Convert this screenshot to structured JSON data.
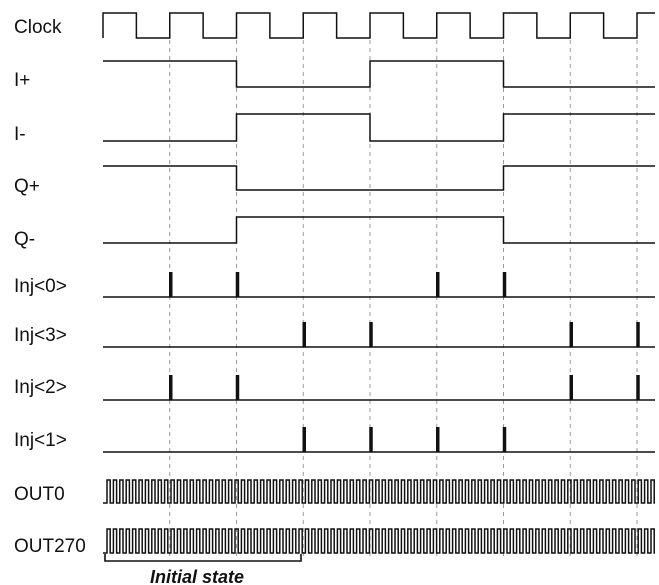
{
  "signals": [
    {
      "label": "Clock",
      "type": "clock"
    },
    {
      "label": "I+",
      "type": "levels",
      "levels": [
        1,
        1,
        0,
        0,
        1,
        1,
        0,
        0,
        0
      ]
    },
    {
      "label": "I-",
      "type": "levels",
      "levels": [
        0,
        0,
        1,
        1,
        0,
        0,
        1,
        1,
        1
      ]
    },
    {
      "label": "Q+",
      "type": "levels",
      "levels": [
        1,
        1,
        0,
        0,
        0,
        0,
        1,
        1,
        1
      ]
    },
    {
      "label": "Q-",
      "type": "levels",
      "levels": [
        0,
        0,
        1,
        1,
        1,
        1,
        0,
        0,
        0
      ]
    },
    {
      "label": "Inj<0>",
      "type": "pulses",
      "pulses": [
        1,
        2,
        5,
        6
      ]
    },
    {
      "label": "Inj<3>",
      "type": "pulses",
      "pulses": [
        3,
        4,
        7,
        8
      ]
    },
    {
      "label": "Inj<2>",
      "type": "pulses",
      "pulses": [
        1,
        2,
        7,
        8
      ]
    },
    {
      "label": "Inj<1>",
      "type": "pulses",
      "pulses": [
        3,
        4,
        5,
        6
      ]
    },
    {
      "label": "OUT0",
      "type": "fast"
    },
    {
      "label": "OUT270",
      "type": "fast"
    }
  ],
  "annotation": {
    "label": "Initial state"
  }
}
